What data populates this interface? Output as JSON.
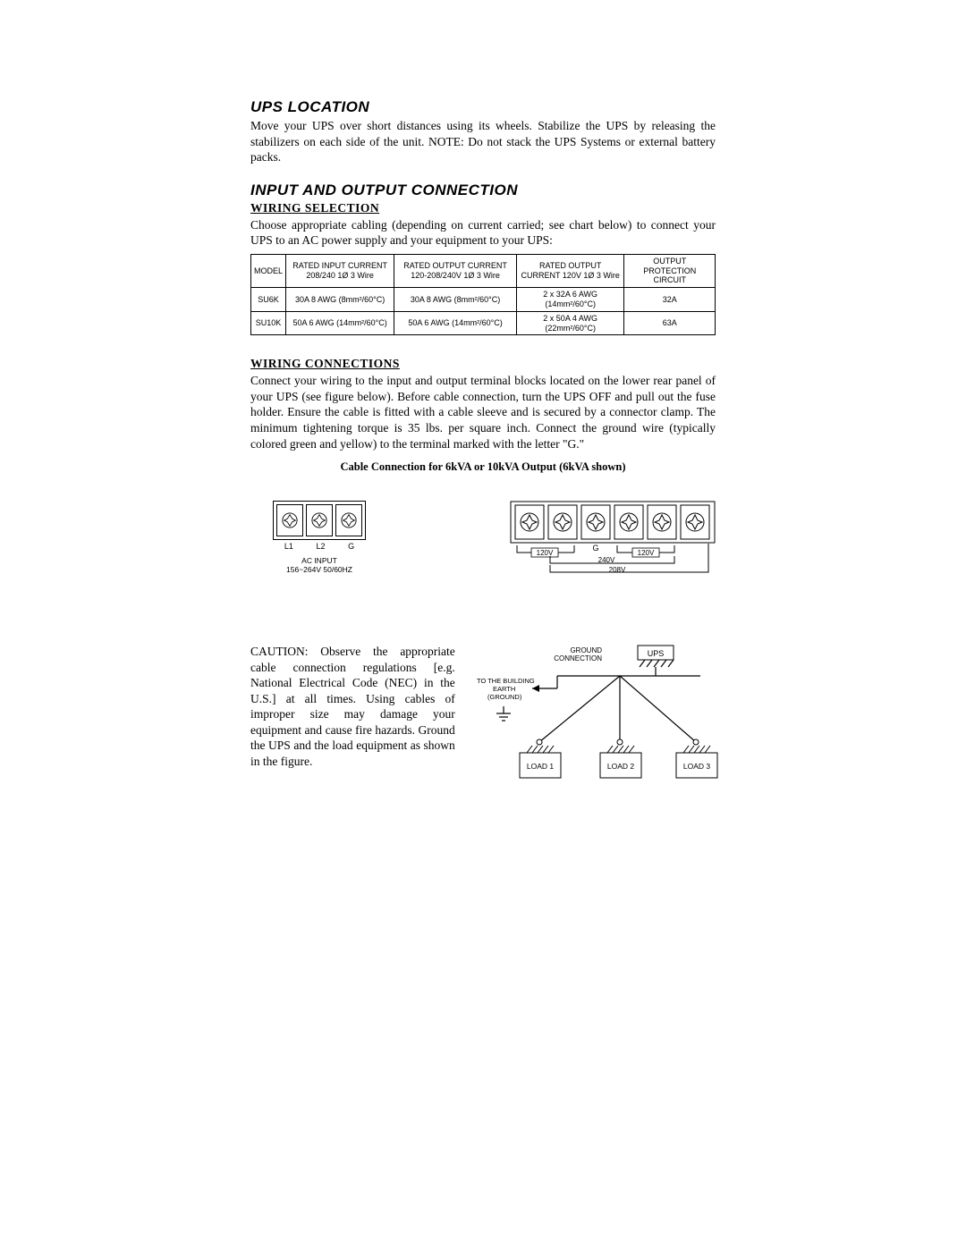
{
  "sections": {
    "ups_location": {
      "title": "UPS LOCATION",
      "body": "Move your UPS over short distances using its wheels. Stabilize the UPS by releasing the stabilizers on each side of the unit. NOTE: Do not stack the UPS Systems or external battery packs."
    },
    "io_connection": {
      "title": "INPUT AND OUTPUT CONNECTION",
      "wiring_selection": {
        "heading": "WIRING SELECTION",
        "body": "Choose appropriate cabling (depending on current carried; see chart below) to connect your UPS to an AC power supply and your equipment to your UPS:"
      },
      "wiring_connections": {
        "heading": "WIRING CONNECTIONS",
        "body": "Connect your wiring to the input and output terminal blocks located on the lower rear panel of your UPS (see figure below). Before cable connection, turn the UPS OFF and pull out the fuse holder. Ensure the cable is fitted with a cable sleeve and is secured by a connector clamp. The minimum tightening torque is 35 lbs. per square inch. Connect the ground wire (typically colored green and yellow) to the terminal marked with the letter \"G.\""
      }
    },
    "cable_connection_title": "Cable Connection for 6kVA or 10kVA Output (6kVA shown)",
    "caution": "CAUTION: Observe the appropriate cable connection regulations [e.g. National Electrical Code (NEC) in the U.S.] at all times. Using cables of improper size may damage your equipment and cause fire hazards. Ground the UPS and the load equipment as shown in the figure."
  },
  "table": {
    "headers": {
      "model": "MODEL",
      "rated_input": "RATED INPUT CURRENT 208/240 1Ø 3 Wire",
      "rated_output_a": "RATED OUTPUT CURRENT 120-208/240V 1Ø 3 Wire",
      "rated_output_b": "RATED OUTPUT CURRENT 120V 1Ø 3 Wire",
      "protection": "OUTPUT PROTECTION CIRCUIT"
    },
    "rows": [
      {
        "model": "SU6K",
        "input": "30A 8 AWG (8mm²/60°C)",
        "out_a": "30A 8 AWG (8mm²/60°C)",
        "out_b": "2 x 32A 6 AWG (14mm²/60°C)",
        "prot": "32A"
      },
      {
        "model": "SU10K",
        "input": "50A 6 AWG (14mm²/60°C)",
        "out_a": "50A 6 AWG (14mm²/60°C)",
        "out_b": "2 x 50A 4 AWG (22mm²/60°C)",
        "prot": "63A"
      }
    ]
  },
  "diagrams": {
    "ac_input": {
      "terminals": [
        "L1",
        "L2",
        "G"
      ],
      "caption_line1": "AC INPUT",
      "caption_line2": "156~264V 50/60HZ"
    },
    "output_block": {
      "labels": {
        "v120": "120V",
        "v240": "240V",
        "v208": "208V",
        "g": "G"
      }
    },
    "ground": {
      "labels": {
        "ground_connection": "GROUND CONNECTION",
        "ups": "UPS",
        "to_building": "TO THE BUILDING EARTH (GROUND)",
        "load1": "LOAD 1",
        "load2": "LOAD 2",
        "load3": "LOAD 3"
      }
    }
  }
}
